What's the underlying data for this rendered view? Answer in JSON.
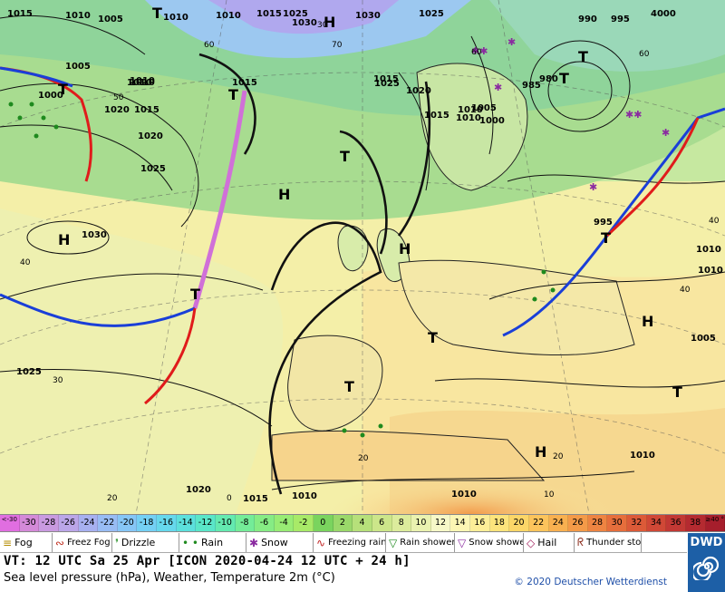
{
  "map": {
    "pressure_labels": [
      "1015",
      "1010",
      "1005",
      "1000",
      "1015",
      "1025",
      "1030",
      "1010",
      "1030",
      "1025",
      "990",
      "995",
      "4000",
      "1005",
      "1010",
      "1015",
      "1010",
      "1020",
      "1025",
      "1030",
      "1015",
      "1025",
      "1020",
      "1015",
      "1010",
      "1000",
      "985",
      "980",
      "995",
      "1010",
      "1010",
      "1005",
      "1025",
      "1020",
      "1015",
      "1010",
      "1010",
      "1015",
      "1020",
      "1010",
      "1010",
      "1010",
      "1010",
      "1005"
    ],
    "pressure_centers": [
      "H",
      "H",
      "H",
      "H",
      "H",
      "H",
      "T",
      "T",
      "T",
      "T",
      "T",
      "T",
      "T",
      "T",
      "T",
      "T",
      "T"
    ],
    "temperature_labels": [
      "60",
      "60",
      "60",
      "50",
      "70",
      "40",
      "40",
      "30",
      "20",
      "40",
      "20",
      "20",
      "0",
      "30",
      "10"
    ]
  },
  "legend": {
    "scale": [
      "<-30",
      "-30",
      "-28",
      "-26",
      "-24",
      "-22",
      "-20",
      "-18",
      "-16",
      "-14",
      "-12",
      "-10",
      "-8",
      "-6",
      "-4",
      "-2",
      "0",
      "2",
      "4",
      "6",
      "8",
      "10",
      "12",
      "14",
      "16",
      "18",
      "20",
      "22",
      "24",
      "26",
      "28",
      "30",
      "32",
      "34",
      "36",
      "38",
      "≥40 °C"
    ],
    "scale_colors": [
      "#e06ee0",
      "#d48ad8",
      "#c99ae0",
      "#bba6e8",
      "#a7b0f0",
      "#98bcf4",
      "#86c6f6",
      "#74d0f4",
      "#66d8ec",
      "#5ce0dc",
      "#5ae6c8",
      "#64eab0",
      "#74ec98",
      "#86ec84",
      "#98ec74",
      "#a8ea68",
      "#7ad45e",
      "#9ad86a",
      "#b6e07a",
      "#cce68a",
      "#dcec9c",
      "#eaf2b0",
      "#f6f8c8",
      "#fcf6b4",
      "#fcee98",
      "#fce47c",
      "#fcd668",
      "#fcc45c",
      "#f8b050",
      "#f49a48",
      "#ee8442",
      "#e66e3c",
      "#dc5a38",
      "#d04836",
      "#c23834",
      "#b42a30",
      "#a61e2c"
    ],
    "symbols": [
      {
        "glyph": "≡",
        "label": "Fog",
        "color": "#b48c00"
      },
      {
        "glyph": "∾",
        "label": "Freez Fog",
        "color": "#c03020"
      },
      {
        "glyph": "❜",
        "label": "Drizzle",
        "color": "#3a9a3a"
      },
      {
        "glyph": "• •",
        "label": "Rain",
        "color": "#1f8a1f"
      },
      {
        "glyph": "✱",
        "label": "Snow",
        "color": "#8a2aa0"
      },
      {
        "glyph": "∿",
        "label": "Freezing rain",
        "color": "#c02020"
      },
      {
        "glyph": "▽",
        "label": "Rain shower",
        "color": "#1f8a1f"
      },
      {
        "glyph": "▽",
        "label": "Snow shower",
        "color": "#8a2aa0"
      },
      {
        "glyph": "◇",
        "label": "Hail",
        "color": "#a01c5a"
      },
      {
        "glyph": "ᖇ",
        "label": "Thunder storm",
        "color": "#8a2a1a"
      }
    ]
  },
  "footer": {
    "vt_line": "VT: 12 UTC Sa  25 Apr [ICON 2020-04-24  12 UTC + 24 h]",
    "product_line": "Sea level pressure (hPa), Weather, Temperature 2m (°C)",
    "copyright": "© 2020 Deutscher Wetterdienst",
    "logo_text": "DWD"
  }
}
